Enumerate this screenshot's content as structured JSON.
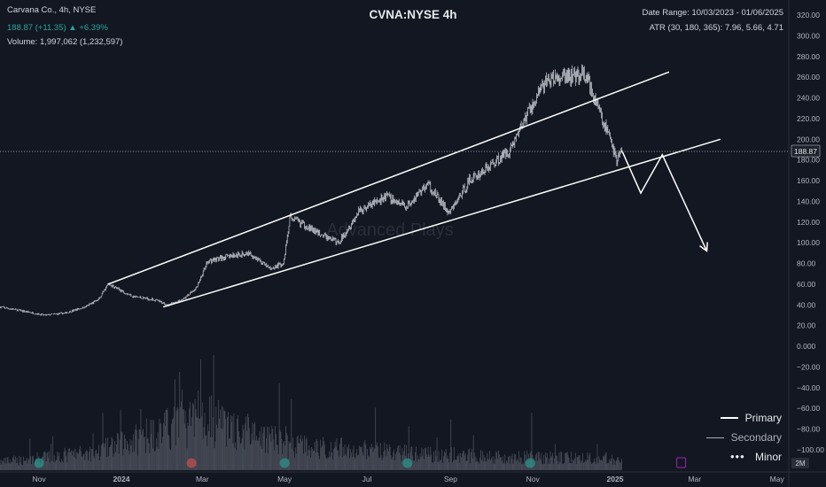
{
  "header": {
    "symbol_line": "Carvana Co., 4h, NYSE",
    "price_line": "188.87 (+11.35) ▲ +6.39%",
    "volume_line": "Volume: 1,997,062 (1,232,597)",
    "date_range": "Date Range: 10/03/2023 - 01/06/2025",
    "atr": "ATR (30, 180, 365): 7.96, 5.66, 4.71"
  },
  "colors": {
    "background": "#131722",
    "candle": "#d1d4dc",
    "channel": "#ffffff",
    "price_change": "#26a69a",
    "event_green": "#26a69a",
    "event_red": "#ef5350",
    "event_purple": "#9c27b0"
  },
  "price_tag": "188.87",
  "volume_unit_tag": "2M",
  "watermark": "Advanced Plays",
  "legend": {
    "primary": "Primary",
    "secondary": "Secondary",
    "minor": "Minor"
  },
  "chart_data": {
    "type": "candlestick",
    "title": "CVNA:NYSE 4h",
    "x_range": [
      "2023-10-03",
      "2025-05-15"
    ],
    "x_tick_labels": [
      "Nov",
      "2024",
      "Mar",
      "May",
      "Jul",
      "Sep",
      "Nov",
      "2025",
      "Mar",
      "May"
    ],
    "x_tick_dates": [
      "2023-11-01",
      "2024-01-01",
      "2024-03-01",
      "2024-05-01",
      "2024-07-01",
      "2024-09-01",
      "2024-11-01",
      "2025-01-01",
      "2025-03-01",
      "2025-05-01"
    ],
    "ylim": [
      -100,
      320
    ],
    "y_ticks": [
      320,
      300,
      280,
      260,
      240,
      220,
      200,
      180,
      160,
      140,
      120,
      100,
      80,
      60,
      40,
      20,
      0,
      -20,
      -40,
      -60,
      -80,
      -100
    ],
    "y_tick_labels": [
      "320.00",
      "300.00",
      "280.00",
      "260.00",
      "240.00",
      "220.00",
      "200.00",
      "180.00",
      "160.00",
      "140.00",
      "120.00",
      "100.00",
      "80.00",
      "60.00",
      "40.00",
      "20.00",
      "0.000",
      "−20.00",
      "−40.00",
      "−60.00",
      "−80.00",
      "−100.00"
    ],
    "grid": false,
    "last_price": 188.87,
    "price_path": [
      {
        "x": "2023-10-03",
        "y": 38
      },
      {
        "x": "2023-10-20",
        "y": 34
      },
      {
        "x": "2023-11-05",
        "y": 30
      },
      {
        "x": "2023-11-20",
        "y": 32
      },
      {
        "x": "2023-12-05",
        "y": 38
      },
      {
        "x": "2023-12-15",
        "y": 45
      },
      {
        "x": "2023-12-22",
        "y": 60
      },
      {
        "x": "2024-01-10",
        "y": 48
      },
      {
        "x": "2024-01-25",
        "y": 45
      },
      {
        "x": "2024-02-05",
        "y": 40
      },
      {
        "x": "2024-02-15",
        "y": 45
      },
      {
        "x": "2024-02-25",
        "y": 55
      },
      {
        "x": "2024-03-05",
        "y": 82
      },
      {
        "x": "2024-03-20",
        "y": 87
      },
      {
        "x": "2024-04-05",
        "y": 90
      },
      {
        "x": "2024-04-20",
        "y": 75
      },
      {
        "x": "2024-04-30",
        "y": 80
      },
      {
        "x": "2024-05-05",
        "y": 125
      },
      {
        "x": "2024-05-25",
        "y": 110
      },
      {
        "x": "2024-06-10",
        "y": 100
      },
      {
        "x": "2024-06-25",
        "y": 130
      },
      {
        "x": "2024-07-15",
        "y": 145
      },
      {
        "x": "2024-07-30",
        "y": 135
      },
      {
        "x": "2024-08-15",
        "y": 157
      },
      {
        "x": "2024-08-31",
        "y": 128
      },
      {
        "x": "2024-09-15",
        "y": 160
      },
      {
        "x": "2024-10-01",
        "y": 175
      },
      {
        "x": "2024-10-15",
        "y": 190
      },
      {
        "x": "2024-10-30",
        "y": 230
      },
      {
        "x": "2024-11-10",
        "y": 255
      },
      {
        "x": "2024-11-25",
        "y": 260
      },
      {
        "x": "2024-12-10",
        "y": 262
      },
      {
        "x": "2024-12-20",
        "y": 230
      },
      {
        "x": "2024-12-28",
        "y": 200
      },
      {
        "x": "2025-01-02",
        "y": 180
      },
      {
        "x": "2025-01-06",
        "y": 188.87
      }
    ],
    "volume_profile": [
      {
        "x": "2023-10-03",
        "v": 0.7
      },
      {
        "x": "2023-12-15",
        "v": 1.6
      },
      {
        "x": "2024-02-29",
        "v": 4.5
      },
      {
        "x": "2024-05-02",
        "v": 2.2
      },
      {
        "x": "2024-08-05",
        "v": 1.4
      },
      {
        "x": "2024-10-31",
        "v": 1.1
      },
      {
        "x": "2025-01-06",
        "v": 1.0
      }
    ],
    "volume_spike_dates": [
      "2024-02-22",
      "2024-02-29",
      "2024-05-02",
      "2023-12-18",
      "2024-08-01",
      "2024-10-31"
    ],
    "channel_upper": [
      {
        "x": "2023-12-22",
        "y": 60
      },
      {
        "x": "2025-02-10",
        "y": 265
      }
    ],
    "channel_lower": [
      {
        "x": "2024-02-01",
        "y": 38
      },
      {
        "x": "2025-03-20",
        "y": 200
      }
    ],
    "projection_path": [
      {
        "x": "2025-01-06",
        "y": 189
      },
      {
        "x": "2025-01-20",
        "y": 148
      },
      {
        "x": "2025-02-05",
        "y": 185
      },
      {
        "x": "2025-03-10",
        "y": 92
      }
    ],
    "event_markers": [
      {
        "x": "2023-11-01",
        "type": "earnings",
        "color": "green"
      },
      {
        "x": "2024-02-22",
        "type": "earnings",
        "color": "red"
      },
      {
        "x": "2024-05-01",
        "type": "earnings",
        "color": "green"
      },
      {
        "x": "2024-07-31",
        "type": "earnings",
        "color": "green"
      },
      {
        "x": "2024-10-30",
        "type": "earnings",
        "color": "green"
      },
      {
        "x": "2025-02-19",
        "type": "upcoming",
        "color": "purple"
      }
    ]
  }
}
